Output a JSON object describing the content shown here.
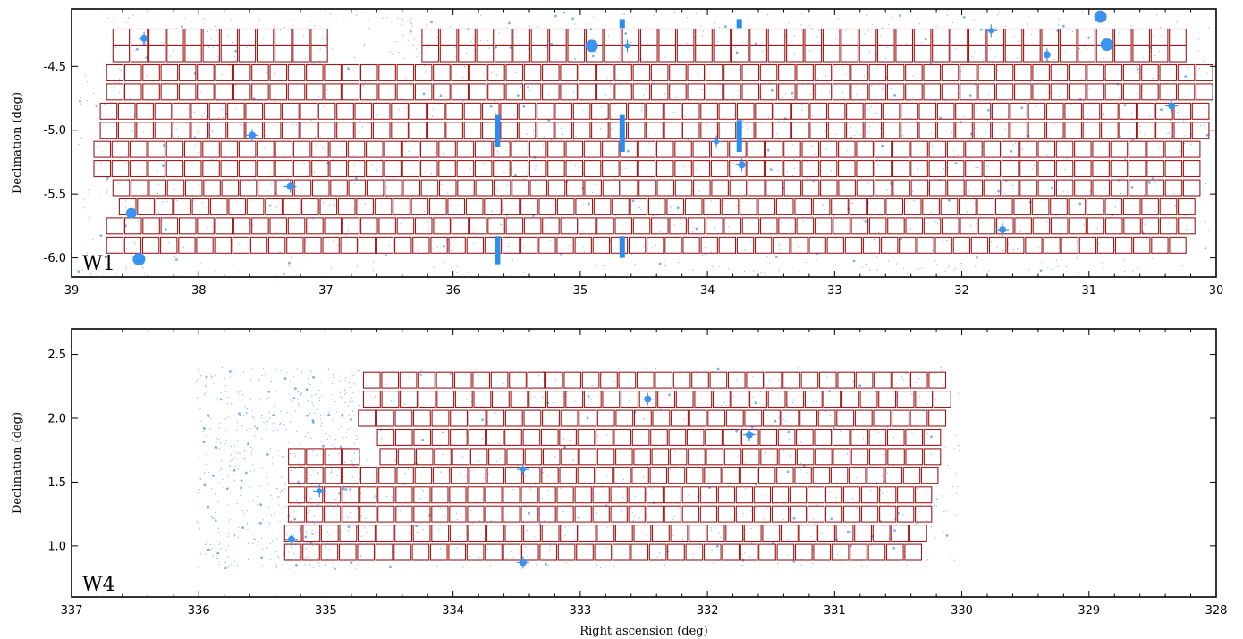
{
  "colors": {
    "pointing": "#a01818",
    "star": "#3a93f0",
    "mask": "#2a8cf0",
    "axes": "#000000"
  },
  "chart_data": [
    {
      "type": "scatter",
      "panel_label": "W1",
      "xlabel": "",
      "ylabel": "Declination (deg)",
      "xlim": [
        39,
        30
      ],
      "ylim": [
        -6.15,
        -4.05
      ],
      "xticks": [
        "39",
        "38",
        "37",
        "36",
        "35",
        "34",
        "33",
        "32",
        "31",
        "30"
      ],
      "yticks": [
        "-4.5",
        "-5.0",
        "-5.5",
        "-6.0"
      ],
      "x_tick_values": [
        39,
        38,
        37,
        36,
        35,
        34,
        33,
        32,
        31,
        30
      ],
      "y_tick_values": [
        -4.5,
        -5.0,
        -5.5,
        -6.0
      ],
      "pointing_size_deg": [
        0.13,
        0.125
      ],
      "pointing_rows": [
        {
          "dec": -4.27,
          "ra_segments": [
            [
              38.68,
              36.98
            ],
            [
              36.25,
              30.23
            ]
          ]
        },
        {
          "dec": -4.4,
          "ra_segments": [
            [
              38.68,
              36.98
            ],
            [
              36.25,
              30.23
            ]
          ]
        },
        {
          "dec": -4.55,
          "ra_segments": [
            [
              38.73,
              30.02
            ]
          ]
        },
        {
          "dec": -4.7,
          "ra_segments": [
            [
              38.73,
              30.02
            ]
          ]
        },
        {
          "dec": -4.85,
          "ra_segments": [
            [
              38.78,
              30.05
            ]
          ]
        },
        {
          "dec": -5.0,
          "ra_segments": [
            [
              38.78,
              30.05
            ]
          ]
        },
        {
          "dec": -5.15,
          "ra_segments": [
            [
              38.83,
              30.12
            ]
          ]
        },
        {
          "dec": -5.3,
          "ra_segments": [
            [
              38.83,
              30.12
            ]
          ]
        },
        {
          "dec": -5.45,
          "ra_segments": [
            [
              38.68,
              30.12
            ]
          ]
        },
        {
          "dec": -5.6,
          "ra_segments": [
            [
              38.63,
              30.16
            ]
          ]
        },
        {
          "dec": -5.75,
          "ra_segments": [
            [
              38.73,
              30.16
            ]
          ]
        },
        {
          "dec": -5.9,
          "ra_segments": [
            [
              38.73,
              30.23
            ]
          ]
        }
      ],
      "bright_stars": [
        {
          "ra": 38.47,
          "dec": -6.01,
          "r": 7
        },
        {
          "ra": 38.53,
          "dec": -5.65,
          "r": 6
        },
        {
          "ra": 34.91,
          "dec": -4.34,
          "r": 7
        },
        {
          "ra": 30.91,
          "dec": -4.11,
          "r": 7
        },
        {
          "ra": 30.86,
          "dec": -4.33,
          "r": 7
        },
        {
          "ra": 38.43,
          "dec": -4.28,
          "r": 4
        },
        {
          "ra": 37.58,
          "dec": -5.04,
          "r": 4
        },
        {
          "ra": 37.28,
          "dec": -5.44,
          "r": 4
        },
        {
          "ra": 33.73,
          "dec": -5.27,
          "r": 4
        },
        {
          "ra": 31.68,
          "dec": -5.78,
          "r": 4
        },
        {
          "ra": 31.33,
          "dec": -4.41,
          "r": 4
        },
        {
          "ra": 30.35,
          "dec": -4.81,
          "r": 4
        },
        {
          "ra": 31.77,
          "dec": -4.22,
          "r": 3
        },
        {
          "ra": 33.93,
          "dec": -5.09,
          "r": 3
        },
        {
          "ra": 34.63,
          "dec": -4.34,
          "r": 3
        }
      ],
      "masks": [
        {
          "ra": 35.65,
          "dec_range": [
            -4.88,
            -5.13
          ]
        },
        {
          "ra": 34.67,
          "dec_range": [
            -4.88,
            -5.17
          ]
        },
        {
          "ra": 33.75,
          "dec_range": [
            -4.92,
            -5.17
          ]
        },
        {
          "ra": 35.65,
          "dec_range": [
            -5.83,
            -6.05
          ]
        },
        {
          "ra": 34.67,
          "dec_range": [
            -5.83,
            -6.0
          ]
        },
        {
          "ra": 34.67,
          "dec_range": [
            -4.13,
            -4.2
          ]
        },
        {
          "ra": 33.75,
          "dec_range": [
            -4.13,
            -4.2
          ]
        }
      ]
    },
    {
      "type": "scatter",
      "panel_label": "W4",
      "xlabel": "Right ascension (deg)",
      "ylabel": "Declination (deg)",
      "xlim": [
        337,
        328
      ],
      "ylim": [
        0.6,
        2.7
      ],
      "xticks": [
        "337",
        "336",
        "335",
        "334",
        "333",
        "332",
        "331",
        "330",
        "329",
        "328"
      ],
      "yticks": [
        "2.5",
        "2.0",
        "1.5",
        "1.0"
      ],
      "x_tick_values": [
        337,
        336,
        335,
        334,
        333,
        332,
        331,
        330,
        329,
        328
      ],
      "y_tick_values": [
        2.5,
        2.0,
        1.5,
        1.0
      ],
      "pointing_size_deg": [
        0.13,
        0.125
      ],
      "pointing_rows": [
        {
          "dec": 2.3,
          "ra_segments": [
            [
              334.71,
              330.12
            ]
          ]
        },
        {
          "dec": 2.15,
          "ra_segments": [
            [
              334.71,
              330.08
            ]
          ]
        },
        {
          "dec": 2.0,
          "ra_segments": [
            [
              334.75,
              330.12
            ]
          ]
        },
        {
          "dec": 1.85,
          "ra_segments": [
            [
              334.6,
              330.16
            ]
          ]
        },
        {
          "dec": 1.7,
          "ra_segments": [
            [
              335.3,
              334.73
            ],
            [
              334.58,
              330.16
            ]
          ]
        },
        {
          "dec": 1.55,
          "ra_segments": [
            [
              335.3,
              330.18
            ]
          ]
        },
        {
          "dec": 1.4,
          "ra_segments": [
            [
              335.3,
              330.23
            ]
          ]
        },
        {
          "dec": 1.25,
          "ra_segments": [
            [
              335.3,
              330.23
            ]
          ]
        },
        {
          "dec": 1.1,
          "ra_segments": [
            [
              335.33,
              330.27
            ]
          ]
        },
        {
          "dec": 0.95,
          "ra_segments": [
            [
              335.33,
              330.31
            ]
          ]
        }
      ],
      "scatter_region": {
        "ra": [
          336.02,
          330.02
        ],
        "dec": [
          0.82,
          2.4
        ],
        "dense_ra": [
          336.02,
          334.72
        ]
      },
      "bright_stars": [
        {
          "ra": 335.27,
          "dec": 1.05,
          "r": 4
        },
        {
          "ra": 333.45,
          "dec": 0.87,
          "r": 4
        },
        {
          "ra": 332.47,
          "dec": 2.15,
          "r": 4
        },
        {
          "ra": 331.67,
          "dec": 1.87,
          "r": 4
        },
        {
          "ra": 333.45,
          "dec": 1.6,
          "r": 3
        },
        {
          "ra": 335.05,
          "dec": 1.43,
          "r": 3
        }
      ]
    }
  ]
}
